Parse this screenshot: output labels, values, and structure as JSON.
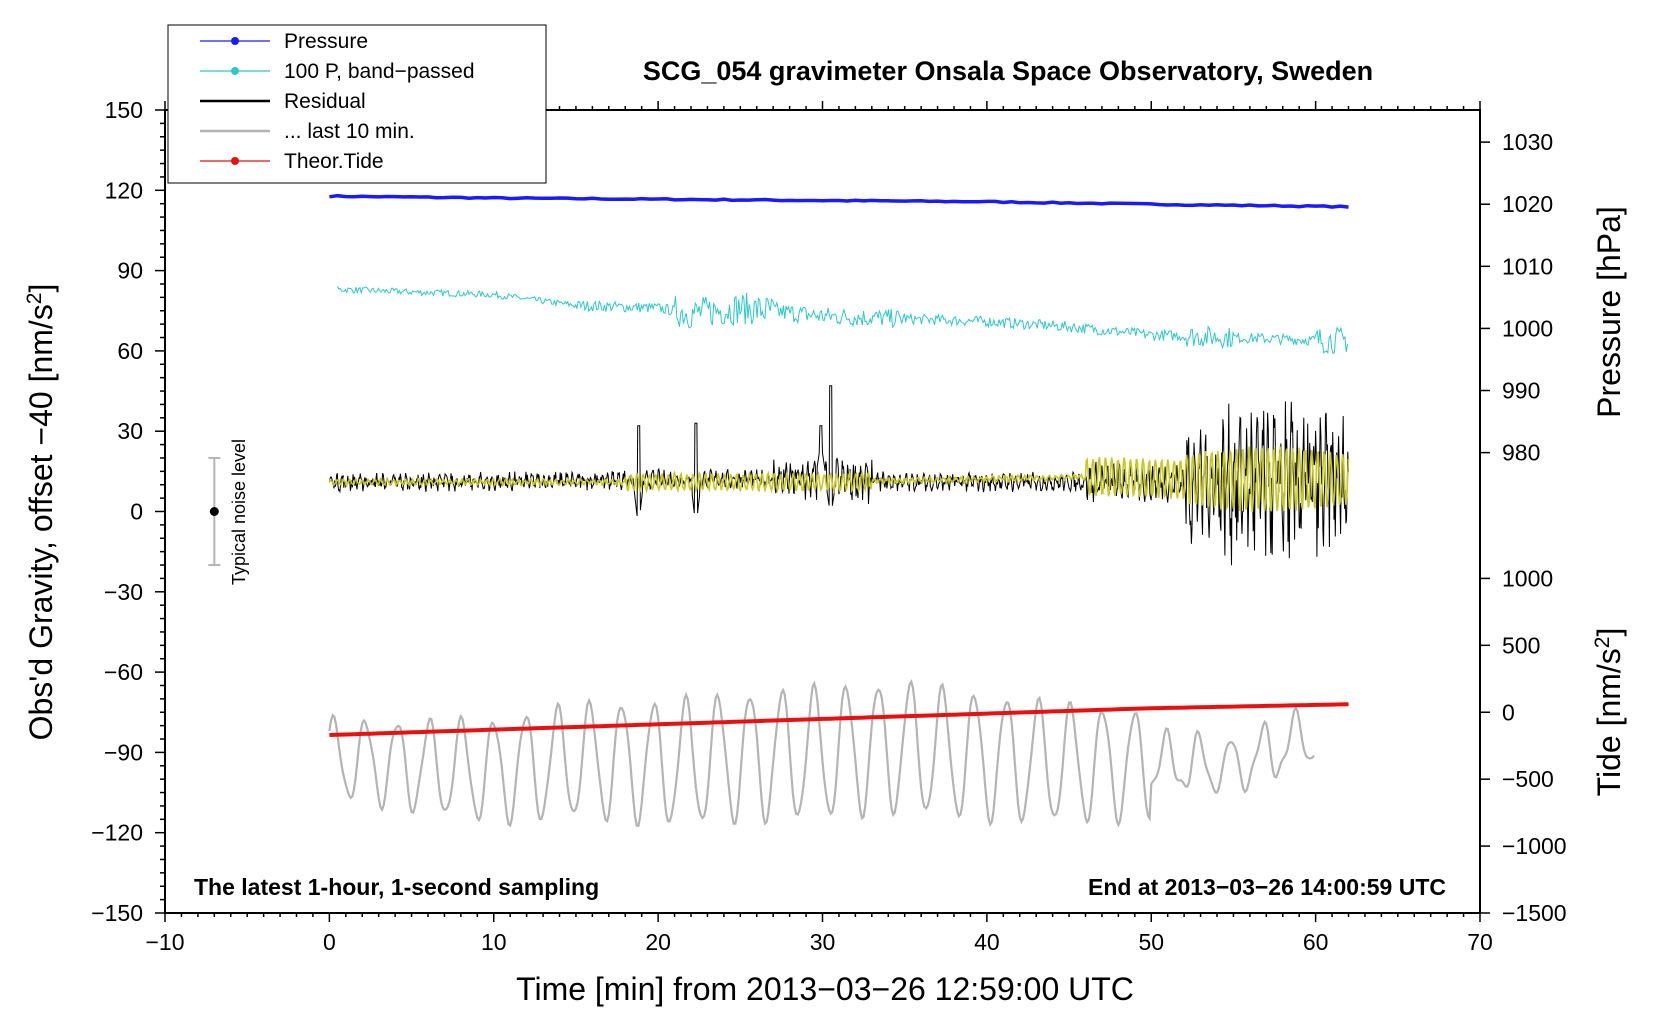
{
  "chart_data": {
    "type": "line",
    "title": "SCG_054 gravimeter Onsala Space Observatory, Sweden",
    "xlabel": "Time [min] from 2013−03−26 12:59:00 UTC",
    "ylabel_left": "Obs'd Gravity, offset −40 [nm/s",
    "ylabel_left_sup": "2",
    "ylabel_left_close": "]",
    "ylabel_pressure": "Pressure [hPa]",
    "ylabel_tide": "Tide [nm/s",
    "ylabel_tide_sup": "2",
    "ylabel_tide_close": "]",
    "xlim": [
      -10,
      70
    ],
    "ylim_left": [
      -150,
      150
    ],
    "x_ticks": [
      -10,
      0,
      10,
      20,
      30,
      40,
      50,
      60,
      70
    ],
    "x_tick_labels": [
      "−10",
      "0",
      "10",
      "20",
      "30",
      "40",
      "50",
      "60",
      "70"
    ],
    "y_ticks_left": [
      150,
      120,
      90,
      60,
      30,
      0,
      -30,
      -60,
      -90,
      -120,
      -150
    ],
    "y_tick_labels_left": [
      "150",
      "120",
      "90",
      "60",
      "30",
      "0",
      "−30",
      "−60",
      "−90",
      "−120",
      "−150"
    ],
    "pressure_axis": {
      "ticks": [
        1030,
        1020,
        1010,
        1000,
        990,
        980
      ],
      "tick_labels": [
        "1030",
        "1020",
        "1010",
        "1000",
        "990",
        "980"
      ],
      "maps_to_left": [
        [
          1030,
          138
        ],
        [
          980,
          22
        ]
      ]
    },
    "tide_axis": {
      "ticks": [
        1000,
        500,
        0,
        -500,
        -1000,
        -1500
      ],
      "tick_labels": [
        "1000",
        "500",
        "0",
        "−500",
        "−1000",
        "−1500"
      ],
      "maps_to_left": [
        [
          1000,
          -25
        ],
        [
          -1500,
          -150
        ]
      ]
    },
    "series": [
      {
        "name": "Pressure",
        "color": "#1a1aff",
        "x": [
          0,
          10,
          20,
          30,
          40,
          50,
          62
        ],
        "y": [
          1021.3,
          1021.0,
          1020.8,
          1020.6,
          1020.4,
          1020.0,
          1019.6
        ],
        "unit": "hPa"
      },
      {
        "name": "100 P, band−passed",
        "color": "#2ec8c8",
        "x": [
          0.5,
          5,
          10,
          15,
          20,
          22,
          25,
          30,
          35,
          40,
          45,
          50,
          55,
          60,
          62
        ],
        "y": [
          83,
          82,
          81,
          77,
          76,
          74,
          76,
          73,
          72,
          71,
          69,
          66,
          65,
          64,
          64
        ],
        "unit": "nm/s2 (scaled)"
      },
      {
        "name": "Residual",
        "color": "#000000",
        "x": [
          0,
          10,
          18.8,
          22.3,
          30.5,
          35,
          40,
          45,
          50,
          55,
          57.5,
          62
        ],
        "y": [
          11,
          11,
          12,
          12,
          12,
          11,
          11,
          11,
          11,
          11,
          11,
          11
        ],
        "unit": "nm/s2"
      },
      {
        "name": "... last 10 min.",
        "color": "#b4b4b4",
        "x": [
          0,
          5,
          10,
          15,
          20,
          25,
          30,
          35,
          40,
          45,
          50,
          55,
          60
        ],
        "y": [
          -92,
          -95,
          -97,
          -93,
          -94,
          -92,
          -90,
          -88,
          -92,
          -94,
          -95,
          -97,
          -83
        ],
        "unit": "nm/s2"
      },
      {
        "name": "Theor.Tide",
        "color": "#e81010",
        "x": [
          0,
          10,
          20,
          30,
          40,
          50,
          62
        ],
        "y": [
          -170,
          -130,
          -90,
          -50,
          -10,
          30,
          60
        ],
        "unit": "nm/s2"
      },
      {
        "name": "filtered residual",
        "color": "#c8c81e",
        "x": [
          0,
          20,
          30,
          47,
          52,
          57,
          62
        ],
        "y": [
          11,
          11,
          11,
          13,
          12,
          12,
          12
        ],
        "unit": "nm/s2"
      }
    ],
    "legend": [
      {
        "label": "Pressure",
        "color": "#1a1aff",
        "style": "line-dot"
      },
      {
        "label": "100 P, band−passed",
        "color": "#2ec8c8",
        "style": "line-dot"
      },
      {
        "label": "Residual",
        "color": "#000000",
        "style": "line"
      },
      {
        "label": "... last 10 min.",
        "color": "#b4b4b4",
        "style": "line"
      },
      {
        "label": "Theor.Tide",
        "color": "#e81010",
        "style": "line-dot"
      }
    ],
    "legend_position": "top-left",
    "noise_bar": {
      "label": "Typical noise level",
      "x": -7,
      "center": 0,
      "low": -20,
      "high": 20
    },
    "annotations": {
      "bottom_left": "The latest 1-hour, 1-second sampling",
      "bottom_right": "End at 2013−03−26 14:00:59 UTC"
    }
  }
}
